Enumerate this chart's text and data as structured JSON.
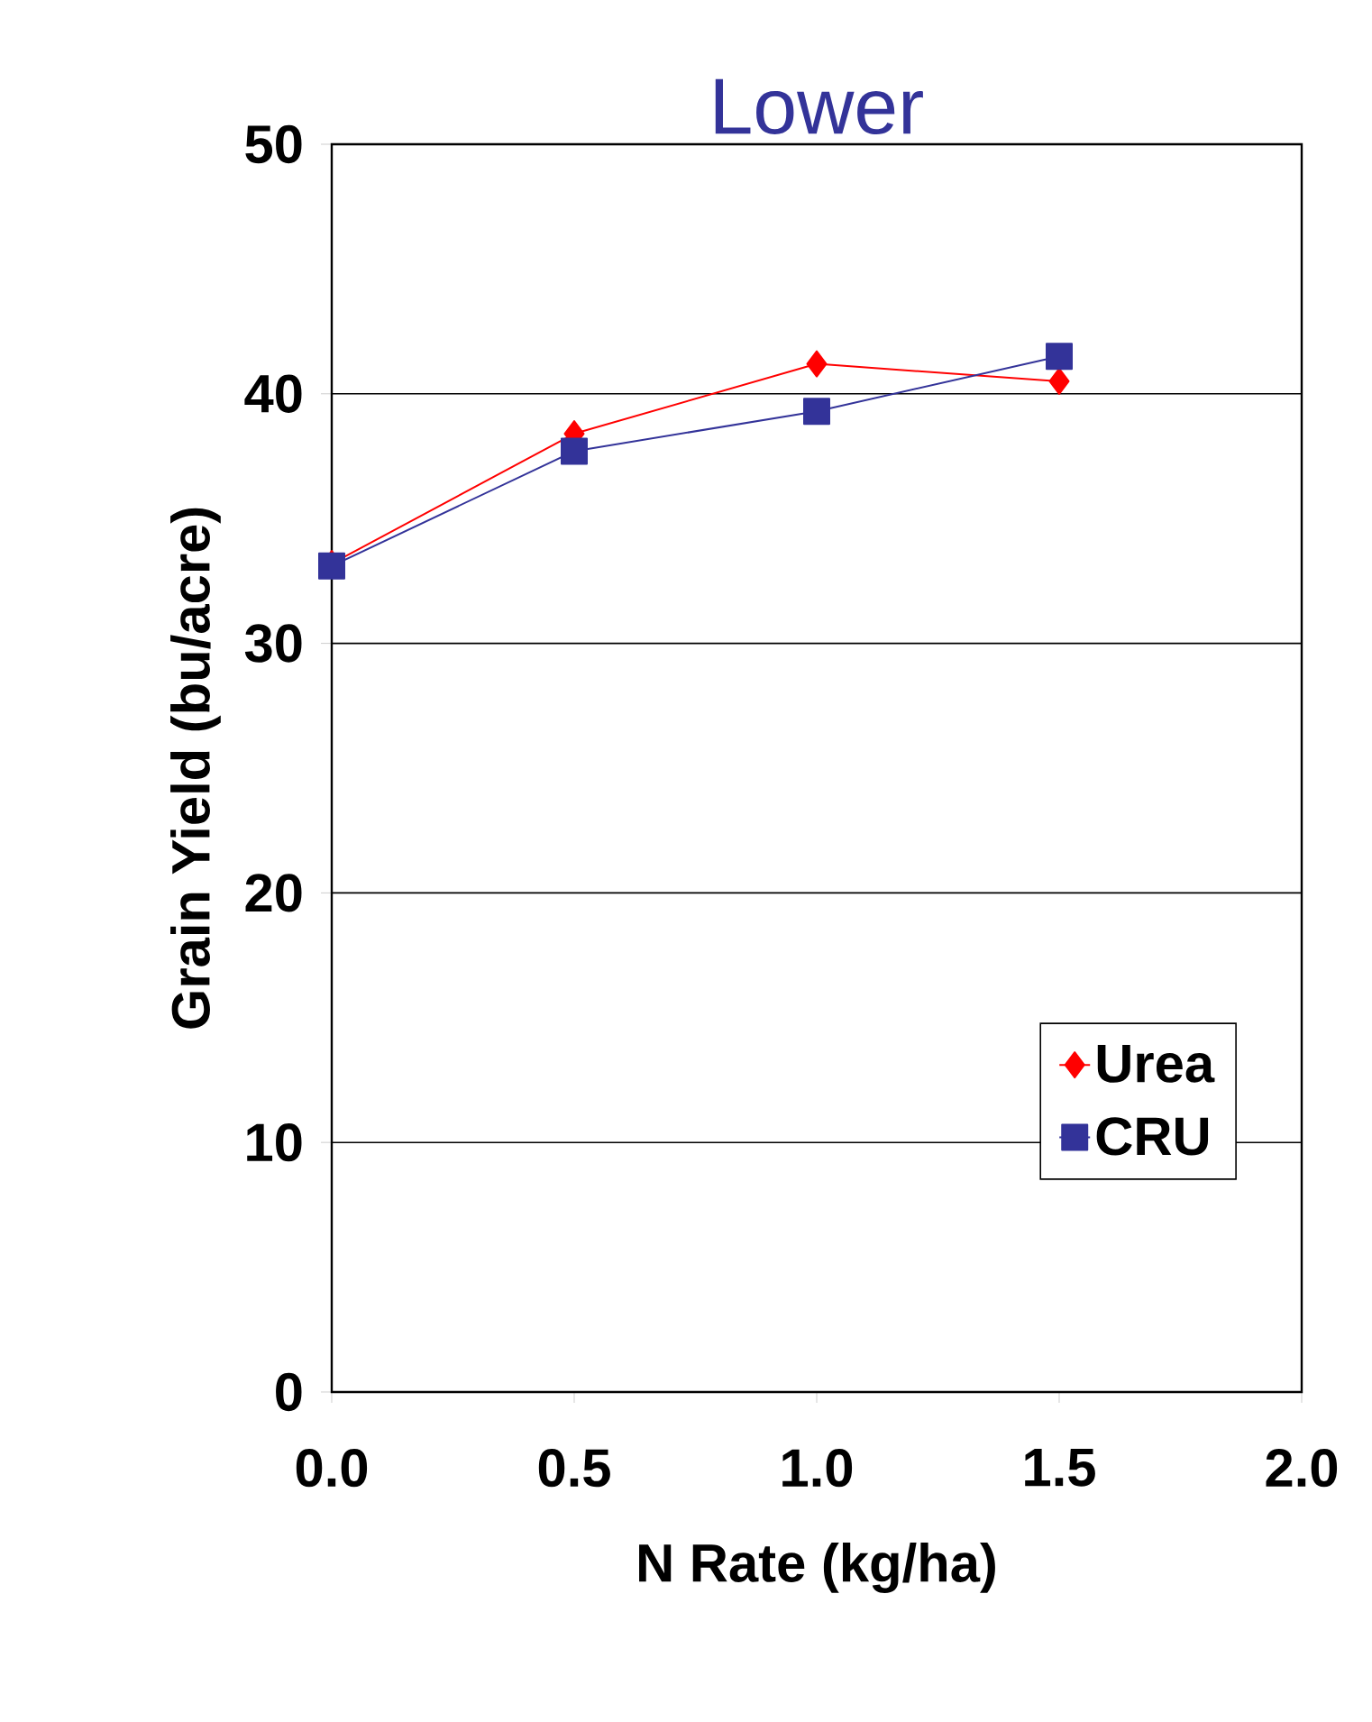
{
  "chart_data": {
    "type": "line",
    "title": "Lower",
    "xlabel": "N Rate (kg/ha)",
    "ylabel": "Grain Yield (bu/acre)",
    "x": [
      0,
      0.5,
      1.0,
      1.5
    ],
    "series": [
      {
        "name": "Urea",
        "color": "#ff0000",
        "marker": "diamond",
        "values": [
          33.2,
          38.4,
          41.2,
          40.5
        ]
      },
      {
        "name": "CRU",
        "color": "#333399",
        "marker": "square",
        "values": [
          33.1,
          37.7,
          39.3,
          41.5
        ]
      }
    ],
    "xlim": [
      0,
      2
    ],
    "ylim": [
      0,
      50
    ],
    "xticks": [
      {
        "value": 0,
        "label": "0.0"
      },
      {
        "value": 0.5,
        "label": "0.5"
      },
      {
        "value": 1,
        "label": "1.0"
      },
      {
        "value": 1.5,
        "label": "1.5"
      },
      {
        "value": 2,
        "label": "2.0"
      }
    ],
    "yticks": [
      0,
      10,
      20,
      30,
      40,
      50
    ],
    "grid": "y",
    "legend": "bottom right",
    "line_style": "solid"
  }
}
